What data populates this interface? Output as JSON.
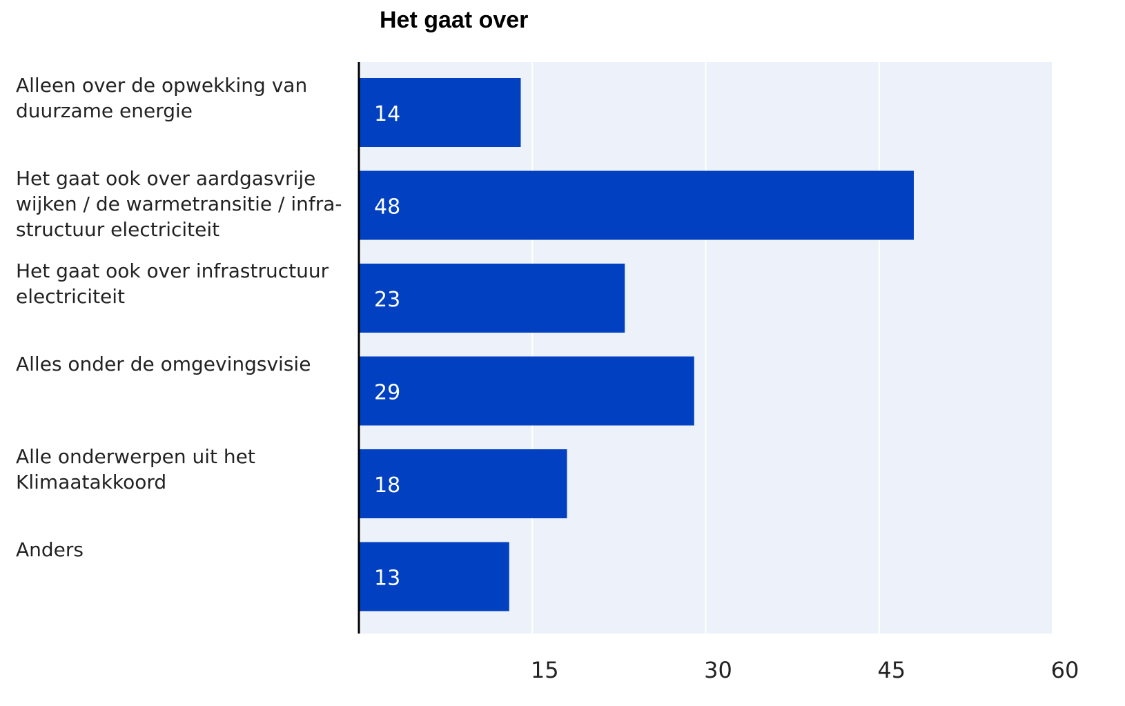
{
  "chart_data": {
    "type": "hbar",
    "title": "Het gaat over",
    "categories": [
      "Alleen over de opwekking van\nduurzame energie",
      "Het gaat ook over aardgasvrije\nwijken / de warmetransitie / infra-\nstructuur electriciteit",
      "Het gaat ook over infrastructuur\nelectriciteit",
      "Alles onder de omgevingsvisie",
      "Alle onderwerpen uit het\nKlimaatakkoord",
      "Anders"
    ],
    "values": [
      14,
      48,
      23,
      29,
      18,
      13
    ],
    "color": "#0040c1",
    "xlim": [
      0,
      60
    ],
    "xticks": [
      15,
      30,
      45,
      60
    ],
    "grid": true
  }
}
